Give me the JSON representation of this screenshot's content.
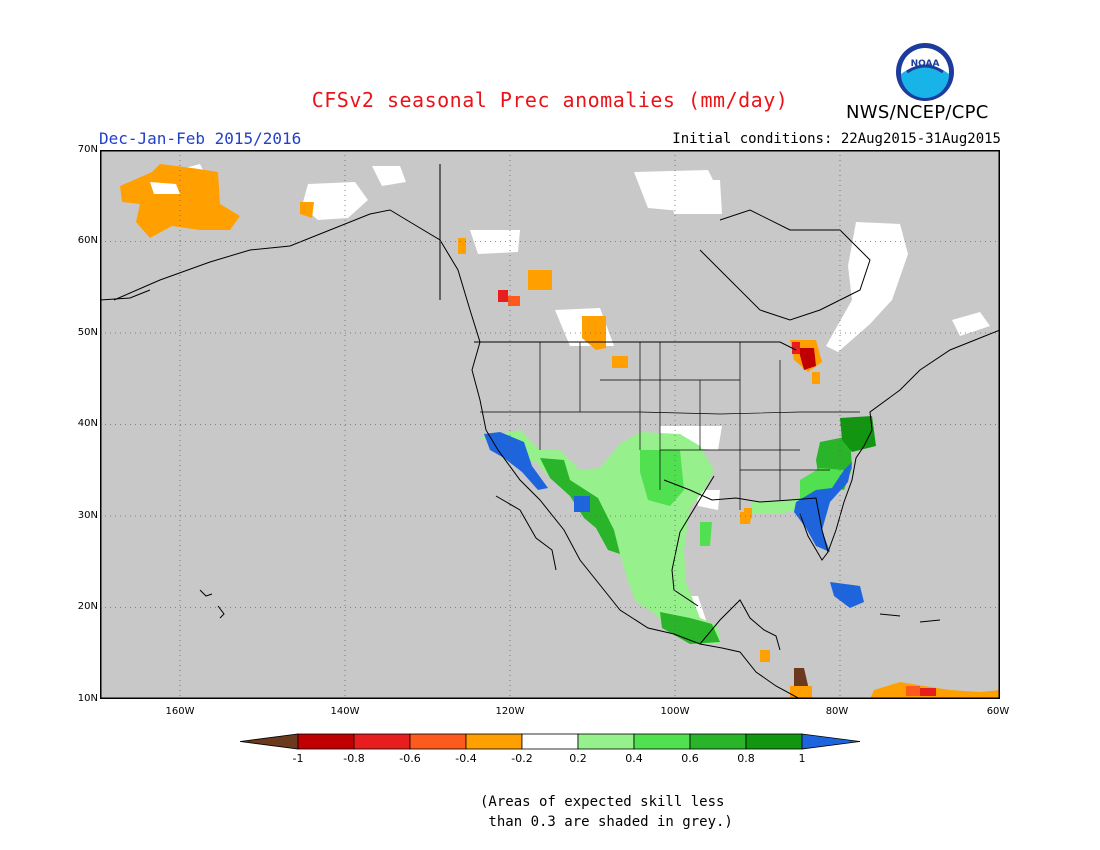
{
  "header": {
    "title": "CFSv2 seasonal Prec anomalies (mm/day)",
    "period": "Dec-Jan-Feb 2015/2016",
    "initial_conditions": "Initial conditions: 22Aug2015-31Aug2015",
    "agency": "NWS/NCEP/CPC",
    "logo_text": "NOAA"
  },
  "map": {
    "region": "North America",
    "background_color": "#c8c8c8",
    "lat_labels": [
      "70N",
      "60N",
      "50N",
      "40N",
      "30N",
      "20N",
      "10N"
    ],
    "lon_labels": [
      "160W",
      "140W",
      "120W",
      "100W",
      "80W",
      "60W"
    ]
  },
  "colorbar": {
    "labels": [
      "-1",
      "-0.8",
      "-0.6",
      "-0.4",
      "-0.2",
      "0.2",
      "0.4",
      "0.6",
      "0.8",
      "1"
    ],
    "colors": [
      "#6b3a1e",
      "#c00000",
      "#e81e1e",
      "#ff5a1e",
      "#ffa000",
      "#ffffff",
      "#96f08c",
      "#50e050",
      "#2ab42a",
      "#129612",
      "#1e64dc"
    ]
  },
  "footnote": {
    "line1": "(Areas of expected skill less",
    "line2": " than 0.3 are shaded in grey.)"
  }
}
